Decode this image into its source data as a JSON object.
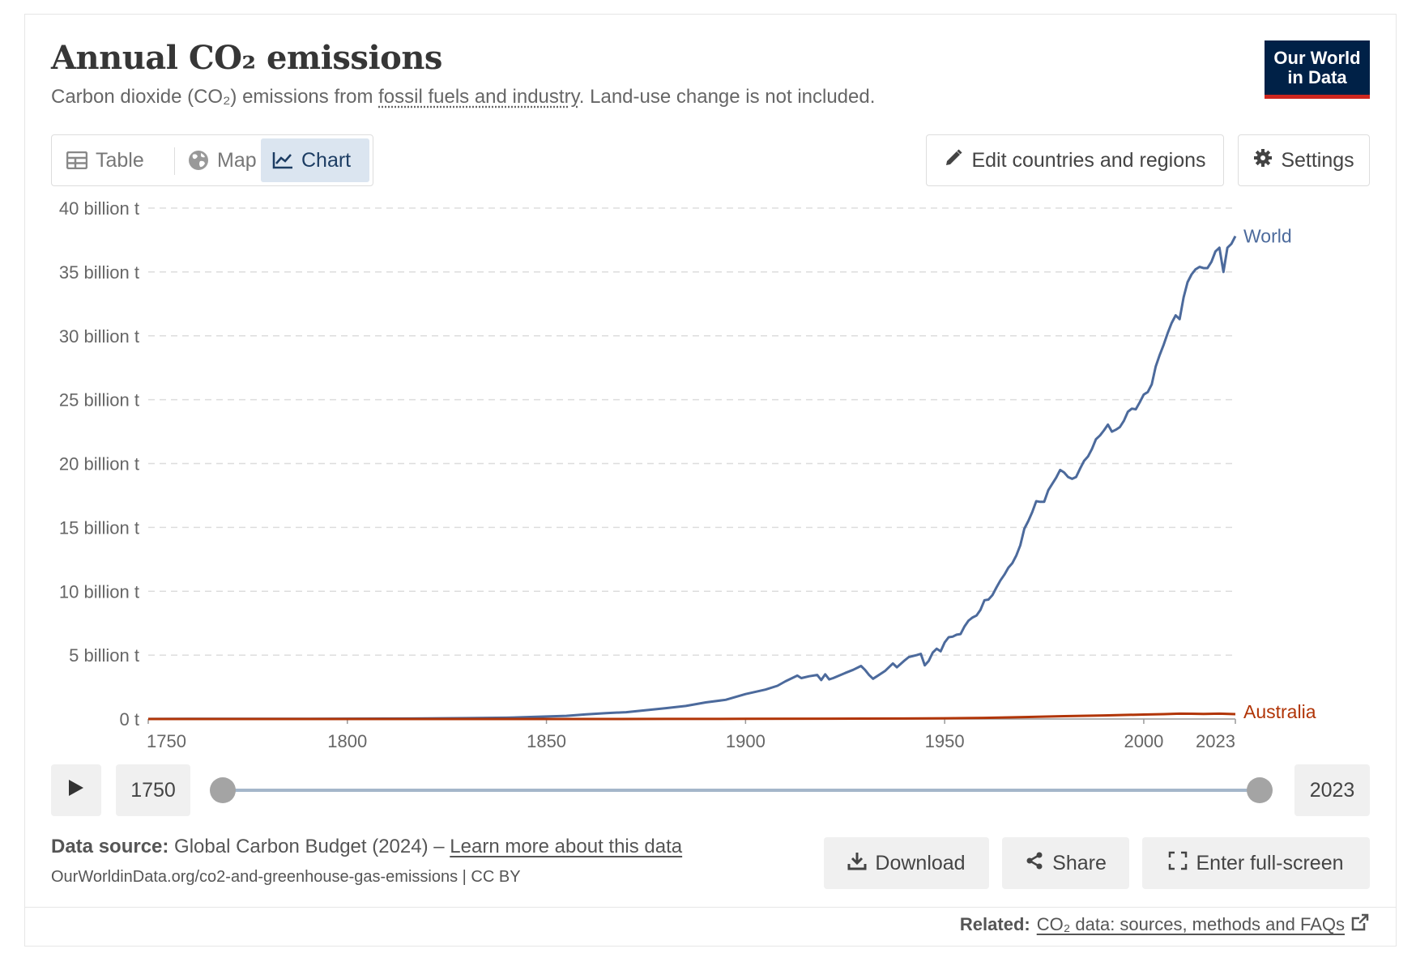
{
  "header": {
    "title": "Annual CO₂ emissions",
    "subtitle_pre": "Carbon dioxide (CO₂) emissions from ",
    "subtitle_link": "fossil fuels and industry",
    "subtitle_post": ". Land-use change is not included.",
    "logo_line1": "Our World",
    "logo_line2": "in Data"
  },
  "tabs": [
    {
      "label": "Table",
      "icon": "table-icon"
    },
    {
      "label": "Map",
      "icon": "globe-icon"
    },
    {
      "label": "Chart",
      "icon": "line-chart-icon",
      "active": true
    }
  ],
  "toolbar": {
    "edit_label": "Edit countries and regions",
    "settings_label": "Settings"
  },
  "timeline": {
    "start_label": "1750",
    "end_label": "2023",
    "range_start": 1750,
    "range_end": 2023
  },
  "footer": {
    "source_label": "Data source:",
    "source_text": " Global Carbon Budget (2024) – ",
    "learn_more": "Learn more about this data",
    "url_text": "OurWorldinData.org/co2-and-greenhouse-gas-emissions | CC BY",
    "download_label": "Download",
    "share_label": "Share",
    "fullscreen_label": "Enter full-screen",
    "related_label": "Related:",
    "related_link": "CO₂ data: sources, methods and FAQs"
  },
  "colors": {
    "world": "#4c6a9c",
    "australia": "#b13507",
    "grid": "#dddddd",
    "brand": "#002147",
    "brand_accent": "#ce261e"
  },
  "chart_data": {
    "type": "line",
    "title": "Annual CO₂ emissions",
    "unit": "t",
    "xlim": [
      1750,
      2023
    ],
    "ylim": [
      0,
      40000000000
    ],
    "x_ticks": [
      1750,
      1800,
      1850,
      1900,
      1950,
      2000,
      2023
    ],
    "y_ticks": [
      {
        "value": 0,
        "label": "0 t"
      },
      {
        "value": 5000000000,
        "label": "5 billion t"
      },
      {
        "value": 10000000000,
        "label": "10 billion t"
      },
      {
        "value": 15000000000,
        "label": "15 billion t"
      },
      {
        "value": 20000000000,
        "label": "20 billion t"
      },
      {
        "value": 25000000000,
        "label": "25 billion t"
      },
      {
        "value": 30000000000,
        "label": "30 billion t"
      },
      {
        "value": 35000000000,
        "label": "35 billion t"
      },
      {
        "value": 40000000000,
        "label": "40 billion t"
      }
    ],
    "grid": true,
    "series": [
      {
        "name": "World",
        "color": "#4c6a9c",
        "points": [
          [
            1750,
            0.009
          ],
          [
            1760,
            0.011
          ],
          [
            1770,
            0.013
          ],
          [
            1780,
            0.017
          ],
          [
            1790,
            0.022
          ],
          [
            1800,
            0.028
          ],
          [
            1810,
            0.033
          ],
          [
            1820,
            0.045
          ],
          [
            1830,
            0.07
          ],
          [
            1840,
            0.1
          ],
          [
            1850,
            0.197
          ],
          [
            1855,
            0.25
          ],
          [
            1860,
            0.36
          ],
          [
            1865,
            0.46
          ],
          [
            1870,
            0.53
          ],
          [
            1875,
            0.69
          ],
          [
            1880,
            0.85
          ],
          [
            1885,
            1.02
          ],
          [
            1890,
            1.3
          ],
          [
            1895,
            1.5
          ],
          [
            1900,
            1.95
          ],
          [
            1905,
            2.3
          ],
          [
            1908,
            2.6
          ],
          [
            1910,
            2.95
          ],
          [
            1913,
            3.4
          ],
          [
            1914,
            3.2
          ],
          [
            1916,
            3.35
          ],
          [
            1918,
            3.45
          ],
          [
            1919,
            3.05
          ],
          [
            1920,
            3.5
          ],
          [
            1921,
            3.1
          ],
          [
            1922,
            3.2
          ],
          [
            1925,
            3.6
          ],
          [
            1927,
            3.85
          ],
          [
            1929,
            4.15
          ],
          [
            1930,
            3.85
          ],
          [
            1931,
            3.45
          ],
          [
            1932,
            3.15
          ],
          [
            1933,
            3.35
          ],
          [
            1935,
            3.75
          ],
          [
            1937,
            4.35
          ],
          [
            1938,
            4.05
          ],
          [
            1940,
            4.6
          ],
          [
            1941,
            4.85
          ],
          [
            1943,
            5.0
          ],
          [
            1944,
            5.1
          ],
          [
            1945,
            4.2
          ],
          [
            1946,
            4.55
          ],
          [
            1947,
            5.2
          ],
          [
            1948,
            5.5
          ],
          [
            1949,
            5.3
          ],
          [
            1950,
            6.0
          ],
          [
            1951,
            6.4
          ],
          [
            1952,
            6.45
          ],
          [
            1953,
            6.6
          ],
          [
            1954,
            6.65
          ],
          [
            1955,
            7.25
          ],
          [
            1956,
            7.7
          ],
          [
            1957,
            7.95
          ],
          [
            1958,
            8.1
          ],
          [
            1959,
            8.55
          ],
          [
            1960,
            9.3
          ],
          [
            1961,
            9.35
          ],
          [
            1962,
            9.7
          ],
          [
            1963,
            10.3
          ],
          [
            1964,
            10.85
          ],
          [
            1965,
            11.3
          ],
          [
            1966,
            11.85
          ],
          [
            1967,
            12.2
          ],
          [
            1968,
            12.8
          ],
          [
            1969,
            13.6
          ],
          [
            1970,
            14.9
          ],
          [
            1971,
            15.5
          ],
          [
            1972,
            16.2
          ],
          [
            1973,
            17.05
          ],
          [
            1974,
            17.0
          ],
          [
            1975,
            17.0
          ],
          [
            1976,
            17.9
          ],
          [
            1977,
            18.4
          ],
          [
            1978,
            18.9
          ],
          [
            1979,
            19.5
          ],
          [
            1980,
            19.3
          ],
          [
            1981,
            18.95
          ],
          [
            1982,
            18.8
          ],
          [
            1983,
            18.95
          ],
          [
            1984,
            19.6
          ],
          [
            1985,
            20.2
          ],
          [
            1986,
            20.55
          ],
          [
            1987,
            21.15
          ],
          [
            1988,
            21.9
          ],
          [
            1989,
            22.2
          ],
          [
            1990,
            22.6
          ],
          [
            1991,
            23.05
          ],
          [
            1992,
            22.5
          ],
          [
            1993,
            22.65
          ],
          [
            1994,
            22.85
          ],
          [
            1995,
            23.35
          ],
          [
            1996,
            24.05
          ],
          [
            1997,
            24.3
          ],
          [
            1998,
            24.25
          ],
          [
            1999,
            24.8
          ],
          [
            2000,
            25.4
          ],
          [
            2001,
            25.6
          ],
          [
            2002,
            26.2
          ],
          [
            2003,
            27.6
          ],
          [
            2004,
            28.5
          ],
          [
            2005,
            29.3
          ],
          [
            2006,
            30.2
          ],
          [
            2007,
            31.0
          ],
          [
            2008,
            31.6
          ],
          [
            2009,
            31.3
          ],
          [
            2010,
            33.0
          ],
          [
            2011,
            34.2
          ],
          [
            2012,
            34.8
          ],
          [
            2013,
            35.2
          ],
          [
            2014,
            35.4
          ],
          [
            2015,
            35.3
          ],
          [
            2016,
            35.3
          ],
          [
            2017,
            35.8
          ],
          [
            2018,
            36.6
          ],
          [
            2019,
            36.9
          ],
          [
            2020,
            35.0
          ],
          [
            2021,
            36.9
          ],
          [
            2022,
            37.2
          ],
          [
            2023,
            37.8
          ]
        ]
      },
      {
        "name": "Australia",
        "color": "#b13507",
        "points": [
          [
            1750,
            0.0
          ],
          [
            1840,
            0.0
          ],
          [
            1860,
            0.002
          ],
          [
            1880,
            0.006
          ],
          [
            1900,
            0.015
          ],
          [
            1920,
            0.028
          ],
          [
            1940,
            0.04
          ],
          [
            1950,
            0.06
          ],
          [
            1960,
            0.09
          ],
          [
            1970,
            0.15
          ],
          [
            1980,
            0.22
          ],
          [
            1990,
            0.28
          ],
          [
            2000,
            0.35
          ],
          [
            2005,
            0.38
          ],
          [
            2009,
            0.42
          ],
          [
            2012,
            0.41
          ],
          [
            2015,
            0.4
          ],
          [
            2019,
            0.42
          ],
          [
            2023,
            0.38
          ]
        ]
      }
    ]
  }
}
